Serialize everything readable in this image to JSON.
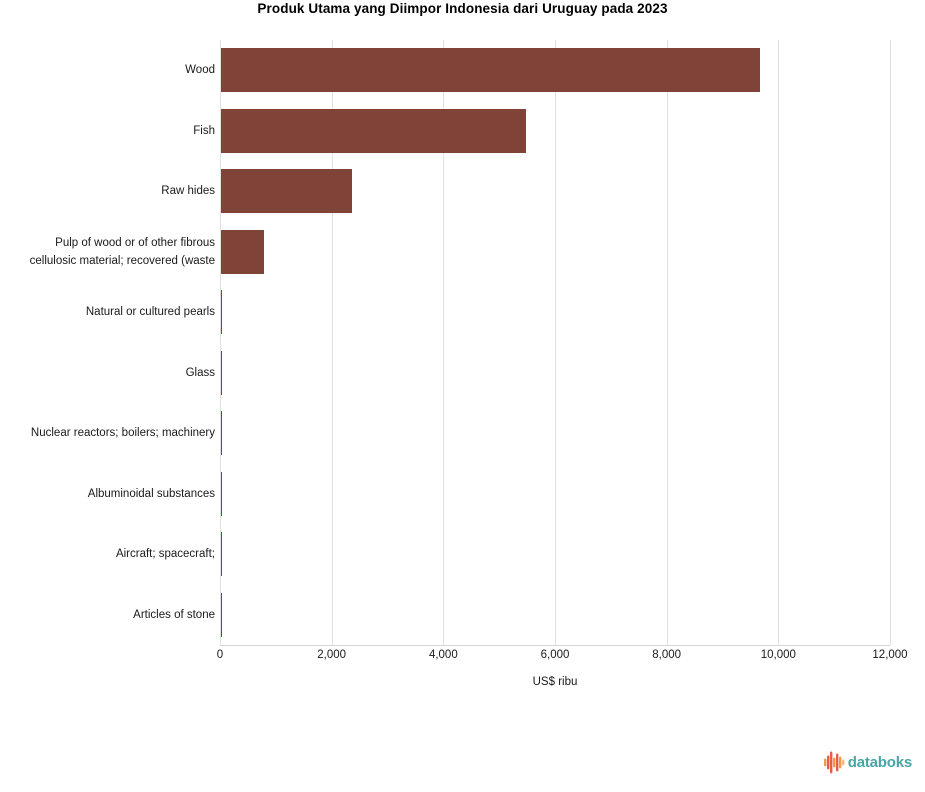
{
  "title": "Produk Utama yang Diimpor Indonesia dari Uruguay pada 2023",
  "chart_data": {
    "type": "bar",
    "orientation": "horizontal",
    "title": "Produk Utama yang Diimpor Indonesia dari Uruguay pada 2023",
    "categories": [
      "Wood",
      "Fish",
      "Raw hides",
      "Pulp of wood or of other fibrous cellulosic material; recovered (waste",
      "Natural or cultured pearls",
      "Glass",
      "Nuclear reactors; boilers; machinery",
      "Albuminoidal substances",
      "Aircraft; spacecraft;",
      "Articles of stone"
    ],
    "values": [
      9680,
      5480,
      2370,
      790,
      30,
      18,
      15,
      9,
      6,
      4
    ],
    "xlabel": "US$ ribu",
    "ylabel": "",
    "xlim": [
      0,
      12000
    ],
    "xticks": [
      0,
      2000,
      4000,
      6000,
      8000,
      10000,
      12000
    ],
    "xtick_labels": [
      "0",
      "2,000",
      "4,000",
      "6,000",
      "8,000",
      "10,000",
      "12,000"
    ],
    "grid": true,
    "legend": "none",
    "bar_color": "#7f4338",
    "gridline_color": "#e0e0e0"
  },
  "branding": {
    "logo_text": "databoks",
    "logo_icon": "equalizer-bars-icon",
    "logo_text_color": "#47a5a4",
    "logo_icon_colors": [
      "#e85c44",
      "#f29a4b",
      "#f5b97e"
    ]
  }
}
